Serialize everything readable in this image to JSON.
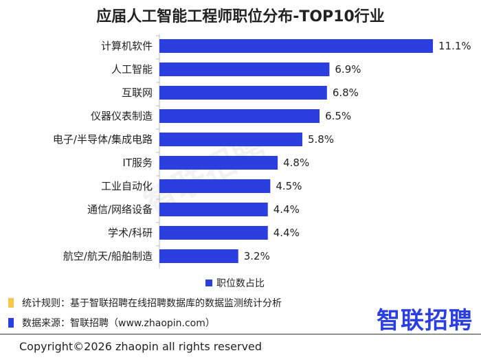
{
  "title": "应届人工智能工程师职位分布-TOP10行业",
  "watermark_text": "智联招聘",
  "legend_label": "职位数占比",
  "notes": [
    {
      "text": "统计规则：基于智联招聘在线招聘数据库的数据监测统计分析",
      "color": "#F5C84C"
    },
    {
      "text": "数据来源：智联招聘（www.zhaopin.com）",
      "color": "#2B3FE0"
    }
  ],
  "brand": "智联招聘",
  "footer": "Copyright©2026 zhaopin all rights reserved",
  "colors": {
    "bar": "#2B3FE0",
    "brand": "#2B3FE0"
  },
  "chart_data": {
    "type": "bar",
    "orientation": "horizontal",
    "title": "应届人工智能工程师职位分布-TOP10行业",
    "categories": [
      "计算机软件",
      "人工智能",
      "互联网",
      "仪器仪表制造",
      "电子/半导体/集成电路",
      "IT服务",
      "工业自动化",
      "通信/网络设备",
      "学术/科研",
      "航空/航天/船舶制造"
    ],
    "series": [
      {
        "name": "职位数占比",
        "values": [
          11.1,
          6.9,
          6.8,
          6.5,
          5.8,
          4.8,
          4.5,
          4.4,
          4.4,
          3.2
        ],
        "labels": [
          "11.1%",
          "6.9%",
          "6.8%",
          "6.5%",
          "5.8%",
          "4.8%",
          "4.5%",
          "4.4%",
          "4.4%",
          "3.2%"
        ]
      }
    ],
    "xlim": [
      0,
      11.1
    ],
    "grid": false,
    "legend": "bottom"
  }
}
